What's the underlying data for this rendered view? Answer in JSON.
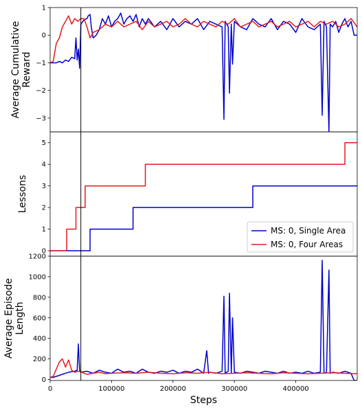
{
  "chart_data": [
    {
      "type": "line",
      "panel": "reward",
      "ylabel": "Average Cumulative Reward",
      "ylabel_lines": [
        "Average Cumulative",
        "Reward"
      ],
      "xlim": [
        0,
        500000
      ],
      "ylim": [
        -3.5,
        1
      ],
      "yticks": [
        -3,
        -2,
        -1,
        0,
        1
      ],
      "yticks_labels": [
        "−3",
        "−2",
        "−1",
        "0",
        "1"
      ],
      "vline_x": 50000,
      "series": [
        {
          "name": "MS: 0, Single Area",
          "color": "#0000cc",
          "x": [
            0,
            5000,
            10000,
            15000,
            20000,
            25000,
            30000,
            35000,
            40000,
            42000,
            44000,
            46000,
            48000,
            50000,
            55000,
            60000,
            62000,
            65000,
            67000,
            70000,
            75000,
            80000,
            85000,
            90000,
            95000,
            100000,
            105000,
            110000,
            115000,
            120000,
            125000,
            130000,
            135000,
            140000,
            145000,
            150000,
            155000,
            160000,
            170000,
            180000,
            190000,
            200000,
            210000,
            220000,
            230000,
            240000,
            250000,
            260000,
            270000,
            280000,
            283000,
            285000,
            290000,
            292000,
            295000,
            297000,
            300000,
            310000,
            320000,
            330000,
            340000,
            350000,
            360000,
            370000,
            380000,
            390000,
            400000,
            410000,
            420000,
            430000,
            440000,
            443000,
            446000,
            450000,
            454000,
            456000,
            460000,
            465000,
            470000,
            475000,
            480000,
            485000,
            490000,
            495000,
            500000
          ],
          "y": [
            -1.0,
            -1.0,
            -1.0,
            -0.95,
            -1.0,
            -0.9,
            -0.95,
            -0.8,
            -0.85,
            -0.1,
            -0.9,
            -0.5,
            -1.2,
            0.4,
            0.55,
            0.6,
            0.7,
            0.75,
            0.3,
            -0.1,
            0.0,
            0.2,
            0.6,
            0.4,
            0.7,
            0.3,
            0.5,
            0.6,
            0.8,
            0.4,
            0.6,
            0.7,
            0.5,
            0.75,
            0.3,
            0.6,
            0.4,
            0.6,
            0.3,
            0.5,
            0.2,
            0.6,
            0.3,
            0.5,
            0.4,
            0.6,
            0.2,
            0.5,
            0.4,
            0.3,
            -3.05,
            0.5,
            0.3,
            -2.1,
            0.4,
            -1.05,
            0.5,
            0.3,
            0.2,
            0.6,
            0.4,
            0.3,
            0.6,
            0.2,
            0.5,
            0.4,
            0.1,
            0.6,
            0.3,
            0.2,
            0.4,
            -2.9,
            0.5,
            0.3,
            -3.5,
            0.4,
            0.3,
            0.5,
            0.1,
            0.4,
            0.6,
            0.3,
            0.5,
            0.0,
            0.0
          ]
        },
        {
          "name": "MS: 0, Four Areas",
          "color": "#e31a1c",
          "x": [
            0,
            5000,
            10000,
            15000,
            20000,
            25000,
            30000,
            35000,
            40000,
            45000,
            50000,
            55000,
            60000,
            65000,
            70000,
            80000,
            90000,
            100000,
            110000,
            120000,
            130000,
            140000,
            150000,
            160000,
            170000,
            180000,
            190000,
            200000,
            210000,
            220000,
            230000,
            240000,
            250000,
            260000,
            270000,
            280000,
            290000,
            300000,
            310000,
            320000,
            330000,
            340000,
            350000,
            360000,
            370000,
            380000,
            390000,
            400000,
            410000,
            420000,
            430000,
            440000,
            450000,
            460000,
            470000,
            480000,
            490000,
            500000
          ],
          "y": [
            -1.0,
            -0.95,
            -0.3,
            -0.1,
            0.3,
            0.5,
            0.7,
            0.4,
            0.6,
            0.5,
            0.6,
            0.6,
            0.3,
            -0.1,
            0.1,
            0.2,
            0.4,
            0.3,
            0.5,
            0.3,
            0.4,
            0.5,
            0.2,
            0.5,
            0.3,
            0.4,
            0.5,
            0.3,
            0.4,
            0.6,
            0.4,
            0.3,
            0.5,
            0.4,
            0.3,
            0.5,
            0.4,
            0.6,
            0.3,
            0.4,
            0.5,
            0.3,
            0.4,
            0.5,
            0.3,
            0.4,
            0.5,
            0.3,
            0.4,
            0.5,
            0.3,
            0.5,
            0.4,
            0.5,
            0.3,
            0.4,
            0.6,
            0.3
          ]
        }
      ]
    },
    {
      "type": "line",
      "panel": "lessons",
      "ylabel": "Lessons",
      "xlim": [
        0,
        500000
      ],
      "ylim": [
        -0.25,
        5.5
      ],
      "yticks": [
        0,
        1,
        2,
        3,
        4,
        5
      ],
      "yticks_labels": [
        "0",
        "1",
        "2",
        "3",
        "4",
        "5"
      ],
      "vline_x": 50000,
      "legend_position": "lower-right",
      "series": [
        {
          "name": "MS: 0, Single Area",
          "color": "#0000cc",
          "step": true,
          "x": [
            0,
            65000,
            65000,
            135000,
            135000,
            330000,
            330000,
            500000
          ],
          "y": [
            0,
            0,
            1,
            1,
            2,
            2,
            3,
            3
          ]
        },
        {
          "name": "MS: 0, Four Areas",
          "color": "#e31a1c",
          "step": true,
          "x": [
            0,
            27000,
            27000,
            42000,
            42000,
            57000,
            57000,
            155000,
            155000,
            480000,
            480000,
            500000
          ],
          "y": [
            0,
            0,
            1,
            1,
            2,
            2,
            3,
            3,
            4,
            4,
            5,
            5
          ]
        }
      ]
    },
    {
      "type": "line",
      "panel": "length",
      "ylabel": "Average Episode Length",
      "ylabel_lines": [
        "Average Episode",
        "Length"
      ],
      "xlabel": "Steps",
      "xlim": [
        0,
        500000
      ],
      "ylim": [
        -10,
        1200
      ],
      "yticks": [
        0,
        200,
        400,
        600,
        800,
        1000,
        1200
      ],
      "yticks_labels": [
        "0",
        "200",
        "400",
        "600",
        "800",
        "1000",
        "1200"
      ],
      "xticks": [
        0,
        100000,
        200000,
        300000,
        400000
      ],
      "xticks_labels": [
        "0",
        "100000",
        "200000",
        "300000",
        "400000"
      ],
      "vline_x": 50000,
      "series": [
        {
          "name": "MS: 0, Single Area",
          "color": "#0000cc",
          "x": [
            0,
            5000,
            10000,
            15000,
            20000,
            25000,
            30000,
            35000,
            40000,
            44000,
            46000,
            48000,
            50000,
            60000,
            70000,
            80000,
            90000,
            100000,
            110000,
            120000,
            130000,
            140000,
            150000,
            160000,
            170000,
            180000,
            190000,
            200000,
            210000,
            220000,
            230000,
            240000,
            250000,
            255000,
            258000,
            260000,
            270000,
            280000,
            283000,
            285000,
            290000,
            292000,
            295000,
            297000,
            300000,
            310000,
            320000,
            330000,
            340000,
            350000,
            360000,
            370000,
            380000,
            390000,
            400000,
            410000,
            420000,
            430000,
            440000,
            443000,
            446000,
            450000,
            454000,
            456000,
            460000,
            470000,
            480000,
            490000,
            495000,
            500000
          ],
          "y": [
            20,
            20,
            30,
            40,
            50,
            60,
            70,
            75,
            80,
            90,
            345,
            90,
            70,
            80,
            60,
            90,
            70,
            60,
            100,
            70,
            80,
            60,
            100,
            70,
            60,
            80,
            70,
            90,
            60,
            80,
            70,
            100,
            60,
            280,
            60,
            70,
            60,
            80,
            810,
            60,
            80,
            840,
            60,
            600,
            70,
            60,
            80,
            70,
            60,
            80,
            70,
            60,
            80,
            60,
            70,
            60,
            80,
            60,
            70,
            1160,
            60,
            70,
            1065,
            60,
            70,
            60,
            80,
            60,
            -10,
            -10
          ]
        },
        {
          "name": "MS: 0, Four Areas",
          "color": "#e31a1c",
          "x": [
            0,
            5000,
            10000,
            15000,
            20000,
            25000,
            30000,
            35000,
            40000,
            45000,
            50000,
            55000,
            60000,
            70000,
            80000,
            90000,
            100000,
            120000,
            140000,
            160000,
            180000,
            200000,
            220000,
            240000,
            260000,
            280000,
            300000,
            320000,
            340000,
            360000,
            380000,
            400000,
            420000,
            440000,
            460000,
            480000,
            500000
          ],
          "y": [
            20,
            30,
            100,
            170,
            200,
            120,
            190,
            90,
            70,
            80,
            75,
            60,
            50,
            60,
            70,
            55,
            60,
            65,
            60,
            70,
            60,
            55,
            65,
            60,
            70,
            55,
            60,
            65,
            60,
            55,
            65,
            60,
            55,
            60,
            65,
            60,
            55
          ]
        }
      ]
    }
  ]
}
